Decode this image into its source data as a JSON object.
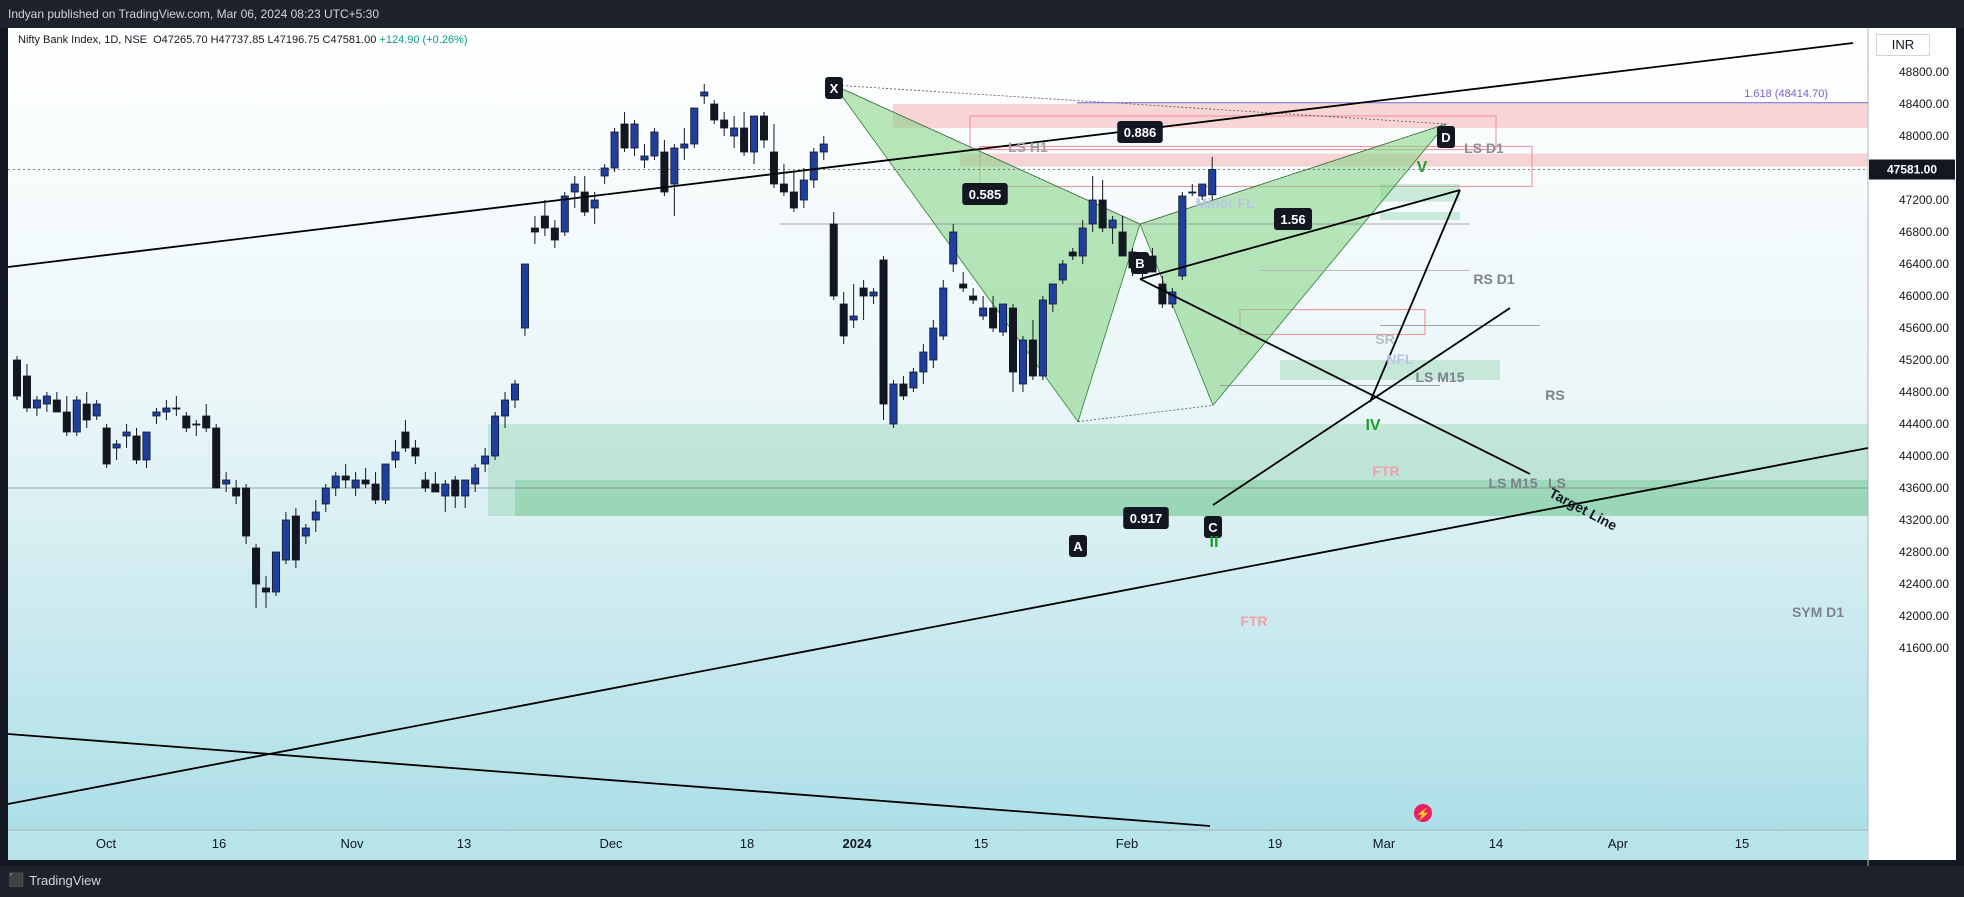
{
  "header": {
    "publisher_text": "Indyan published on TradingView.com, Mar 06, 2024 08:23 UTC+5:30"
  },
  "legend": {
    "symbol": "Nifty Bank Index, 1D, NSE",
    "ohlc": "O47265.70 H47737.85 L47196.75 C47581.00",
    "change": "+124.90 (+0.26%)"
  },
  "currency": "INR",
  "footer": {
    "brand": "TradingView"
  },
  "colors": {
    "up": "#ffffff",
    "down": "#131722",
    "blue_candle": "#1f3fa0",
    "pattern_fill": "#7fd17f",
    "zone_green": "#66c28a",
    "zone_red": "#f4a3a8",
    "line": "#000000",
    "fib": "#7b61c9"
  },
  "chart_data": {
    "type": "candlestick",
    "symbol": "Nifty Bank Index",
    "timeframe": "1D",
    "exchange": "NSE",
    "ylim": [
      41400,
      49200
    ],
    "y_ticks": [
      41600,
      42000,
      42400,
      42800,
      43200,
      43600,
      44000,
      44400,
      44800,
      45200,
      45600,
      46000,
      46400,
      46800,
      47200,
      47600,
      48000,
      48400,
      48800
    ],
    "y_tick_labels": [
      "41600.00",
      "42000.00",
      "42400.00",
      "42800.00",
      "43200.00",
      "43600.00",
      "44000.00",
      "44400.00",
      "44800.00",
      "45200.00",
      "45600.00",
      "46000.00",
      "46400.00",
      "46800.00",
      "47200.00",
      "47600.00",
      "48000.00",
      "48400.00",
      "48800.00"
    ],
    "x_labels": [
      "Oct",
      "16",
      "Nov",
      "13",
      "Dec",
      "18",
      "2024",
      "15",
      "Feb",
      "19",
      "Mar",
      "14",
      "Apr",
      "15"
    ],
    "last_price_label": "47581.00",
    "fib_label": "1.618 (48414.70)",
    "harmonic_pattern": {
      "points": [
        {
          "label": "X",
          "value": 48636
        },
        {
          "label": "A",
          "value": 44429
        },
        {
          "label": "B",
          "value": 46900
        },
        {
          "label": "C",
          "value": 44633
        },
        {
          "label": "D",
          "value": 48150
        }
      ],
      "ratios": [
        "0.886",
        "0.585",
        "1.56",
        "0.917"
      ]
    },
    "wave_labels": [
      "II",
      "IV",
      "V"
    ],
    "level_labels": [
      "LS H1",
      "LS D1",
      "Minor FL",
      "RS D1",
      "SR",
      "NFL",
      "LS M15",
      "RS",
      "FTR",
      "LS M15",
      "LS",
      "SYM D1",
      "FTR"
    ],
    "annotation": "Target Line",
    "candles": [
      [
        45200,
        45250,
        44700,
        44750
      ],
      [
        45000,
        45150,
        44550,
        44600
      ],
      [
        44600,
        44750,
        44500,
        44700
      ],
      [
        44650,
        44800,
        44550,
        44750
      ],
      [
        44700,
        44800,
        44550,
        44550
      ],
      [
        44550,
        44750,
        44250,
        44300
      ],
      [
        44300,
        44750,
        44250,
        44700
      ],
      [
        44650,
        44800,
        44350,
        44450
      ],
      [
        44500,
        44700,
        44450,
        44650
      ],
      [
        44350,
        44400,
        43850,
        43900
      ],
      [
        44100,
        44200,
        43950,
        44150
      ],
      [
        44250,
        44400,
        44100,
        44300
      ],
      [
        44250,
        44350,
        43900,
        43950
      ],
      [
        43950,
        44300,
        43850,
        44300
      ],
      [
        44500,
        44600,
        44400,
        44550
      ],
      [
        44550,
        44700,
        44450,
        44600
      ],
      [
        44600,
        44750,
        44500,
        44600
      ],
      [
        44500,
        44550,
        44300,
        44350
      ],
      [
        44400,
        44450,
        44250,
        44400
      ],
      [
        44500,
        44650,
        44300,
        44350
      ],
      [
        44350,
        44400,
        43600,
        43600
      ],
      [
        43650,
        43800,
        43550,
        43700
      ],
      [
        43600,
        43700,
        43400,
        43500
      ],
      [
        43600,
        43650,
        42900,
        43000
      ],
      [
        42850,
        42900,
        42100,
        42400
      ],
      [
        42350,
        42500,
        42100,
        42300
      ],
      [
        42300,
        42800,
        42250,
        42800
      ],
      [
        42700,
        43300,
        42650,
        43200
      ],
      [
        43250,
        43350,
        42600,
        42700
      ],
      [
        43000,
        43150,
        42900,
        43100
      ],
      [
        43200,
        43450,
        43050,
        43300
      ],
      [
        43400,
        43650,
        43300,
        43600
      ],
      [
        43600,
        43800,
        43500,
        43750
      ],
      [
        43750,
        43900,
        43600,
        43700
      ],
      [
        43600,
        43800,
        43500,
        43700
      ],
      [
        43700,
        43850,
        43600,
        43650
      ],
      [
        43650,
        43800,
        43400,
        43450
      ],
      [
        43450,
        43900,
        43400,
        43900
      ],
      [
        43950,
        44200,
        43850,
        44050
      ],
      [
        44300,
        44450,
        44050,
        44100
      ],
      [
        44100,
        44200,
        43900,
        44000
      ],
      [
        43700,
        43800,
        43550,
        43600
      ],
      [
        43650,
        43800,
        43550,
        43550
      ],
      [
        43500,
        43700,
        43300,
        43650
      ],
      [
        43700,
        43750,
        43350,
        43500
      ],
      [
        43500,
        43700,
        43350,
        43700
      ],
      [
        43650,
        43900,
        43550,
        43850
      ],
      [
        43900,
        44100,
        43800,
        44000
      ],
      [
        44000,
        44550,
        43950,
        44500
      ],
      [
        44500,
        44800,
        44350,
        44700
      ],
      [
        44700,
        44950,
        44600,
        44900
      ],
      [
        45600,
        46400,
        45500,
        46400
      ],
      [
        46850,
        47000,
        46650,
        46800
      ],
      [
        47000,
        47200,
        46750,
        46850
      ],
      [
        46850,
        46950,
        46600,
        46700
      ],
      [
        46800,
        47300,
        46750,
        47250
      ],
      [
        47300,
        47500,
        47100,
        47400
      ],
      [
        47300,
        47500,
        47000,
        47050
      ],
      [
        47100,
        47300,
        46900,
        47200
      ],
      [
        47500,
        47650,
        47400,
        47600
      ],
      [
        47600,
        48100,
        47550,
        48050
      ],
      [
        48150,
        48300,
        47800,
        47850
      ],
      [
        47850,
        48200,
        47750,
        48150
      ],
      [
        47700,
        47900,
        47600,
        47750
      ],
      [
        47750,
        48100,
        47700,
        48050
      ],
      [
        47800,
        47950,
        47250,
        47300
      ],
      [
        47400,
        47900,
        47000,
        47850
      ],
      [
        47850,
        48100,
        47700,
        47900
      ],
      [
        47900,
        48350,
        47850,
        48350
      ],
      [
        48500,
        48650,
        48400,
        48550
      ],
      [
        48400,
        48450,
        48150,
        48200
      ],
      [
        48200,
        48300,
        48000,
        48100
      ],
      [
        48000,
        48250,
        47850,
        48100
      ],
      [
        48100,
        48300,
        47750,
        47800
      ],
      [
        47800,
        48250,
        47650,
        48250
      ],
      [
        48250,
        48300,
        47850,
        47950
      ],
      [
        47800,
        48150,
        47350,
        47400
      ],
      [
        47400,
        47650,
        47250,
        47300
      ],
      [
        47300,
        47550,
        47050,
        47100
      ],
      [
        47200,
        47600,
        47100,
        47450
      ],
      [
        47450,
        47850,
        47350,
        47800
      ],
      [
        47800,
        48000,
        47700,
        47900
      ],
      [
        46900,
        47050,
        45950,
        46000
      ],
      [
        45900,
        46050,
        45400,
        45500
      ],
      [
        45700,
        46150,
        45600,
        45750
      ],
      [
        46100,
        46200,
        45700,
        46000
      ],
      [
        46000,
        46100,
        45900,
        46050
      ],
      [
        46450,
        46500,
        44450,
        44650
      ],
      [
        44400,
        44950,
        44350,
        44900
      ],
      [
        44900,
        45000,
        44700,
        44750
      ],
      [
        44850,
        45100,
        44800,
        45050
      ],
      [
        45050,
        45400,
        44900,
        45300
      ],
      [
        45200,
        45700,
        45100,
        45600
      ],
      [
        45500,
        46200,
        45450,
        46100
      ],
      [
        46400,
        46900,
        46300,
        46800
      ],
      [
        46150,
        46300,
        46050,
        46100
      ],
      [
        46000,
        46100,
        45900,
        45950
      ],
      [
        45750,
        46000,
        45700,
        45850
      ],
      [
        45850,
        46000,
        45550,
        45600
      ],
      [
        45550,
        45900,
        45500,
        45900
      ],
      [
        45850,
        45900,
        44800,
        45050
      ],
      [
        44900,
        45500,
        44800,
        45450
      ],
      [
        45450,
        45700,
        44950,
        45000
      ],
      [
        45000,
        46000,
        44950,
        45950
      ],
      [
        45900,
        46150,
        45800,
        46150
      ],
      [
        46200,
        46450,
        46150,
        46400
      ],
      [
        46550,
        46600,
        46450,
        46500
      ],
      [
        46500,
        46950,
        46400,
        46850
      ],
      [
        46900,
        47500,
        46800,
        47200
      ],
      [
        47200,
        47450,
        46800,
        46850
      ],
      [
        46850,
        47000,
        46650,
        46950
      ],
      [
        46800,
        47000,
        46500,
        46500
      ],
      [
        46550,
        46600,
        46250,
        46350
      ],
      [
        46400,
        46550,
        46200,
        46500
      ],
      [
        46500,
        46600,
        46300,
        46300
      ],
      [
        46150,
        46250,
        45850,
        45900
      ],
      [
        45900,
        46100,
        45850,
        46050
      ],
      [
        46250,
        47300,
        46200,
        47250
      ],
      [
        47300,
        47400,
        47250,
        47300
      ],
      [
        47250,
        47400,
        47200,
        47400
      ],
      [
        47265.7,
        47737.85,
        47196.75,
        47581
      ]
    ]
  }
}
